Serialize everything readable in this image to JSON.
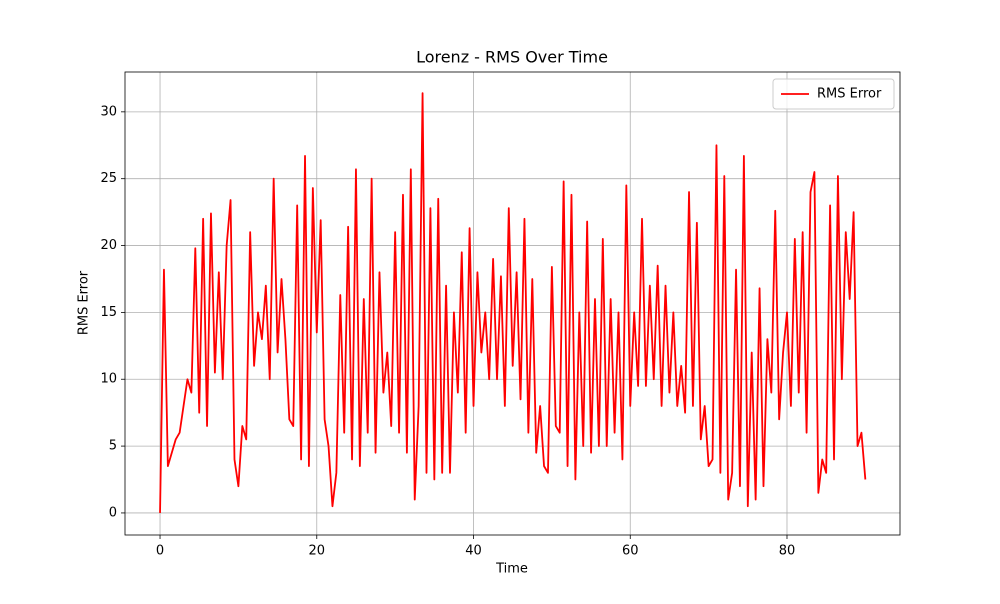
{
  "chart_data": {
    "type": "line",
    "title": "Lorenz - RMS Over Time",
    "x_label": "Time",
    "y_label": "RMS Error",
    "x": [
      0,
      0.5,
      1,
      1.5,
      2,
      2.5,
      3,
      3.5,
      4,
      4.5,
      5,
      5.5,
      6,
      6.5,
      7,
      7.5,
      8,
      8.5,
      9,
      9.5,
      10,
      10.5,
      11,
      11.5,
      12,
      12.5,
      13,
      13.5,
      14,
      14.5,
      15,
      15.5,
      16,
      16.5,
      17,
      17.5,
      18,
      18.5,
      19,
      19.5,
      20,
      20.5,
      21,
      21.5,
      22,
      22.5,
      23,
      23.5,
      24,
      24.5,
      25,
      25.5,
      26,
      26.5,
      27,
      27.5,
      28,
      28.5,
      29,
      29.5,
      30,
      30.5,
      31,
      31.5,
      32,
      32.5,
      33,
      33.5,
      34,
      34.5,
      35,
      35.5,
      36,
      36.5,
      37,
      37.5,
      38,
      38.5,
      39,
      39.5,
      40,
      40.5,
      41,
      41.5,
      42,
      42.5,
      43,
      43.5,
      44,
      44.5,
      45,
      45.5,
      46,
      46.5,
      47,
      47.5,
      48,
      48.5,
      49,
      49.5,
      50,
      50.5,
      51,
      51.5,
      52,
      52.5,
      53,
      53.5,
      54,
      54.5,
      55,
      55.5,
      56,
      56.5,
      57,
      57.5,
      58,
      58.5,
      59,
      59.5,
      60,
      60.5,
      61,
      61.5,
      62,
      62.5,
      63,
      63.5,
      64,
      64.5,
      65,
      65.5,
      66,
      66.5,
      67,
      67.5,
      68,
      68.5,
      69,
      69.5,
      70,
      70.5,
      71,
      71.5,
      72,
      72.5,
      73,
      73.5,
      74,
      74.5,
      75,
      75.5,
      76,
      76.5,
      77,
      77.5,
      78,
      78.5,
      79,
      79.5,
      80,
      80.5,
      81,
      81.5,
      82,
      82.5,
      83,
      83.5,
      84,
      84.5,
      85,
      85.5,
      86,
      86.5,
      87,
      87.5,
      88,
      88.5,
      89,
      89.5,
      90
    ],
    "series": [
      {
        "name": "RMS Error",
        "color": "#ff0000",
        "values": [
          0,
          18.2,
          3.5,
          4.5,
          5.5,
          6,
          8,
          10,
          9,
          19.8,
          7.5,
          22,
          6.5,
          22.4,
          10.5,
          18,
          10,
          20,
          23.4,
          4,
          2,
          6.5,
          5.5,
          21,
          11,
          15,
          13,
          17,
          10,
          25,
          12,
          17.5,
          13,
          7,
          6.5,
          23,
          4,
          26.7,
          3.5,
          24.3,
          13.5,
          21.9,
          7,
          5,
          0.5,
          3,
          16.3,
          6,
          21.4,
          4,
          25.7,
          3.5,
          16,
          6,
          25,
          4.5,
          18,
          9,
          12,
          6.5,
          21,
          6,
          23.8,
          4.5,
          25.7,
          1,
          8,
          31.4,
          3,
          22.8,
          2.5,
          23.5,
          3,
          17,
          3,
          15,
          9,
          19.5,
          6,
          21.3,
          8,
          18,
          12,
          15,
          10,
          19,
          10,
          17.7,
          8,
          22.8,
          11,
          18,
          8.5,
          22,
          6,
          17.5,
          4.5,
          8,
          3.5,
          3,
          18.4,
          6.5,
          6,
          24.8,
          3.5,
          23.8,
          2.5,
          15,
          5,
          21.8,
          4.5,
          16,
          5,
          20.5,
          5,
          16,
          6,
          15,
          4,
          24.5,
          8,
          15,
          9.5,
          22,
          9.5,
          17,
          10,
          18.5,
          8,
          17,
          9,
          15,
          8,
          11,
          7.5,
          24,
          8,
          21.7,
          5.5,
          8,
          3.5,
          4,
          27.5,
          3,
          25.2,
          1,
          3,
          18.2,
          2,
          26.7,
          0.5,
          12,
          1,
          16.8,
          2,
          13,
          9,
          22.6,
          7,
          12,
          15,
          8,
          20.5,
          9,
          21,
          6,
          24,
          25.5,
          1.5,
          4,
          3,
          23,
          4,
          25.2,
          10,
          21,
          16,
          22.5,
          5,
          6,
          2.5
        ]
      }
    ],
    "xlim": [
      -4.47,
      94.42
    ],
    "ylim": [
      -1.65,
      32.98
    ],
    "xticks": [
      0,
      20,
      40,
      60,
      80
    ],
    "yticks": [
      0,
      5,
      10,
      15,
      20,
      25,
      30
    ],
    "grid": true,
    "legend": "upper right"
  }
}
